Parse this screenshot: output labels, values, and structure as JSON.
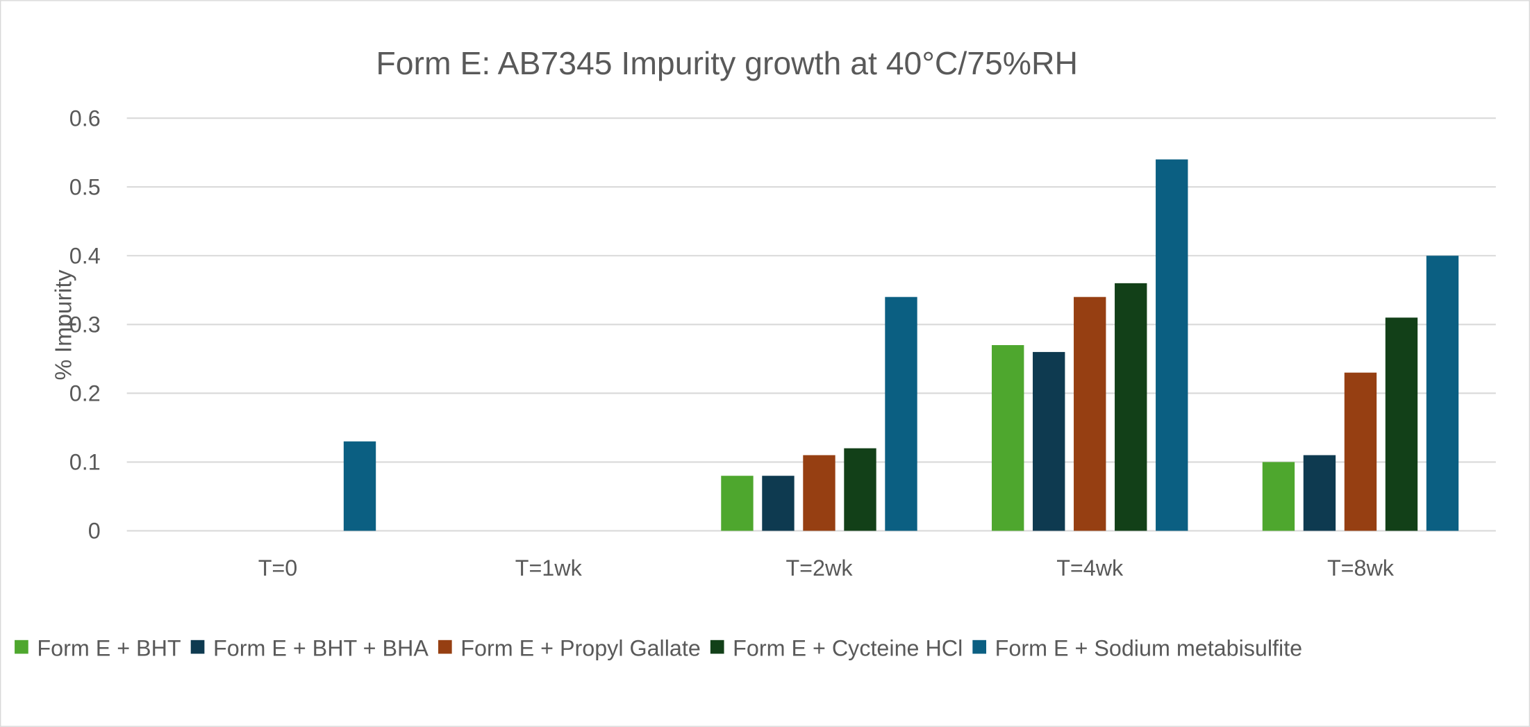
{
  "chart_data": {
    "type": "bar",
    "title": "Form E: AB7345 Impurity growth at 40°C/75%RH",
    "xlabel": "",
    "ylabel": "% Impurity",
    "ylim": [
      0,
      0.6
    ],
    "yticks": [
      "0",
      "0.1",
      "0.2",
      "0.3",
      "0.4",
      "0.5",
      "0.6"
    ],
    "ytick_values": [
      0,
      0.1,
      0.2,
      0.3,
      0.4,
      0.5,
      0.6
    ],
    "grid": true,
    "legend_position": "bottom",
    "categories": [
      "T=0",
      "T=1wk",
      "T=2wk",
      "T=4wk",
      "T=8wk"
    ],
    "series": [
      {
        "name": "Form E + BHT",
        "color": "#4EA72E",
        "values": [
          0,
          0,
          0.08,
          0.27,
          0.1
        ]
      },
      {
        "name": "Form E + BHT + BHA",
        "color": "#0E3A50",
        "values": [
          0,
          0,
          0.08,
          0.26,
          0.11
        ]
      },
      {
        "name": "Form E + Propyl Gallate",
        "color": "#963F12",
        "values": [
          0,
          0,
          0.11,
          0.34,
          0.23
        ]
      },
      {
        "name": "Form E + Cycteine HCl",
        "color": "#124018",
        "values": [
          0,
          0,
          0.12,
          0.36,
          0.31
        ]
      },
      {
        "name": "Form E + Sodium metabisulfite",
        "color": "#0B5F82",
        "values": [
          0.13,
          0,
          0.34,
          0.54,
          0.4
        ]
      }
    ]
  }
}
